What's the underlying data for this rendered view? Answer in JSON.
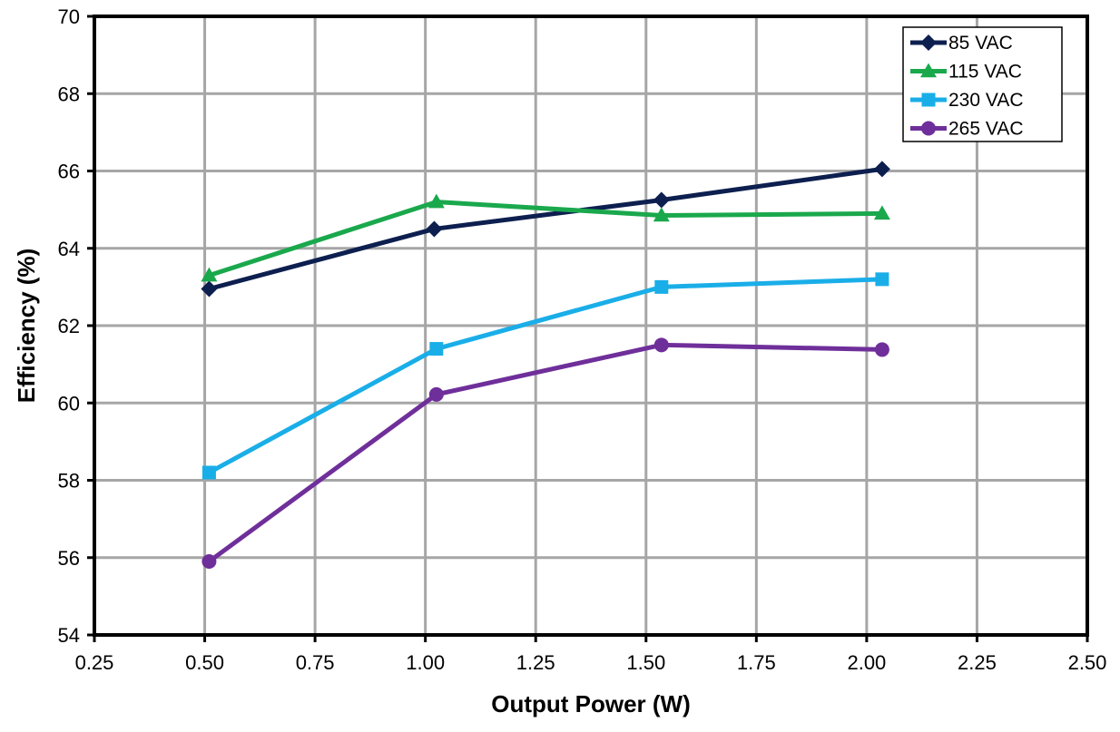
{
  "chart_data": {
    "type": "line",
    "title": "",
    "xlabel": "Output Power (W)",
    "ylabel": "Efficiency (%)",
    "xlim": [
      0.25,
      2.5
    ],
    "ylim": [
      54,
      70
    ],
    "xticks": [
      "0.25",
      "0.50",
      "0.75",
      "1.00",
      "1.25",
      "1.50",
      "1.75",
      "2.00",
      "2.25",
      "2.50"
    ],
    "yticks": [
      "54",
      "56",
      "58",
      "60",
      "62",
      "64",
      "66",
      "68",
      "70"
    ],
    "grid": true,
    "legend_position": "top-right",
    "series": [
      {
        "name": "85 VAC",
        "marker": "diamond",
        "color": "#0d1f4f",
        "x": [
          0.51,
          1.02,
          1.535,
          2.035
        ],
        "y": [
          62.95,
          64.5,
          65.25,
          66.05
        ]
      },
      {
        "name": "115 VAC",
        "marker": "triangle",
        "color": "#1aa84c",
        "x": [
          0.51,
          1.025,
          1.535,
          2.035
        ],
        "y": [
          63.3,
          65.2,
          64.85,
          64.9
        ]
      },
      {
        "name": "230 VAC",
        "marker": "square",
        "color": "#1aaee8",
        "x": [
          0.51,
          1.025,
          1.535,
          2.035
        ],
        "y": [
          58.2,
          61.4,
          63.0,
          63.2
        ]
      },
      {
        "name": "265 VAC",
        "marker": "circle",
        "color": "#6f2f9a",
        "x": [
          0.51,
          1.025,
          1.535,
          2.035
        ],
        "y": [
          55.9,
          60.22,
          61.5,
          61.38
        ]
      }
    ]
  }
}
